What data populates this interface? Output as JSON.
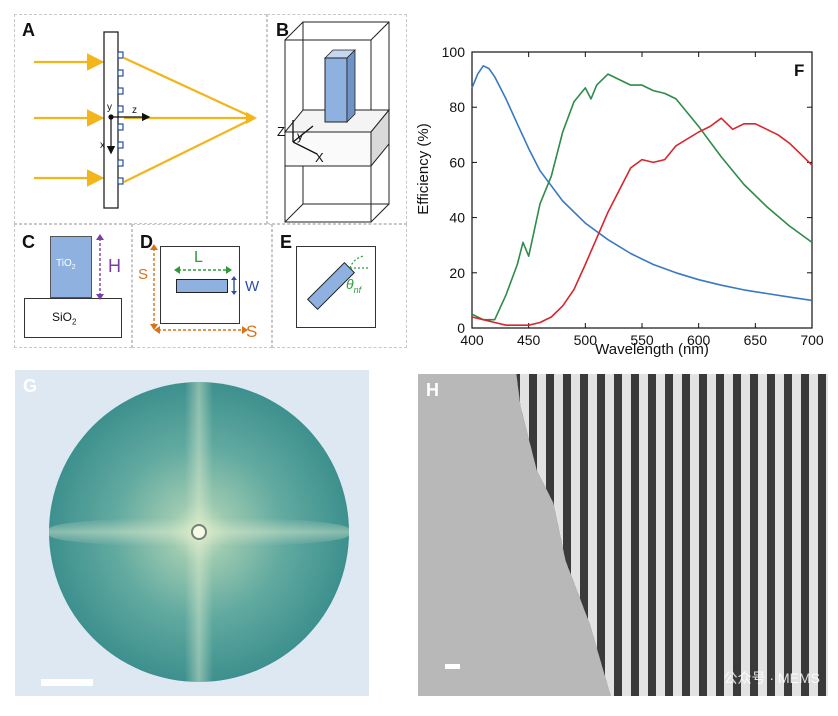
{
  "labels": {
    "a": "A",
    "b": "B",
    "c": "C",
    "d": "D",
    "e": "E",
    "f": "F",
    "g": "G",
    "h": "H"
  },
  "diagram_a": {
    "axis_y": "y",
    "axis_z": "z",
    "axis_x": "x"
  },
  "diagram_b": {
    "axis_z": "Z",
    "axis_y": "y",
    "axis_x": "X"
  },
  "diagram_c": {
    "pillar": "TiO",
    "pillar_sub": "2",
    "substrate": "SiO",
    "substrate_sub": "2",
    "height": "H"
  },
  "diagram_d": {
    "length": "L",
    "width": "W",
    "period_v": "S",
    "period_h": "S"
  },
  "diagram_e": {
    "angle": "θ",
    "angle_sub": "nf"
  },
  "watermark": "公众号 · MEMS",
  "colors": {
    "blue": "#3a78c2",
    "green": "#2e8b4a",
    "red": "#d8262c",
    "arrow": "#f2b51c",
    "pillar": "#8fb1df",
    "dim_h": "#7a3ea8",
    "dim_l": "#2f9a3a",
    "dim_s": "#d9731a"
  },
  "chart_data": {
    "type": "line",
    "title": "",
    "xlabel": "Wavelength (nm)",
    "ylabel": "Efficiency (%)",
    "xlim": [
      400,
      700
    ],
    "ylim": [
      0,
      100
    ],
    "xticks": [
      400,
      450,
      500,
      550,
      600,
      650,
      700
    ],
    "yticks": [
      0,
      20,
      40,
      60,
      80,
      100
    ],
    "grid": false,
    "series": [
      {
        "color": "blue",
        "x": [
          400,
          405,
          410,
          415,
          420,
          430,
          440,
          450,
          460,
          480,
          500,
          520,
          540,
          560,
          580,
          600,
          620,
          640,
          660,
          680,
          700
        ],
        "y": [
          87,
          92,
          95,
          94,
          91,
          83,
          74,
          65,
          57,
          46,
          38,
          32,
          27,
          23,
          20,
          17.5,
          15.5,
          13.8,
          12.5,
          11.2,
          10
        ]
      },
      {
        "color": "green",
        "x": [
          400,
          410,
          420,
          430,
          440,
          445,
          450,
          460,
          470,
          480,
          490,
          500,
          505,
          510,
          520,
          530,
          540,
          550,
          560,
          570,
          580,
          600,
          620,
          640,
          660,
          680,
          700
        ],
        "y": [
          5,
          3,
          3,
          12,
          23,
          31,
          26,
          45,
          55,
          71,
          82,
          87,
          83,
          88,
          92,
          90,
          88,
          88,
          86,
          85,
          83,
          73,
          62,
          52,
          44,
          37,
          31
        ]
      },
      {
        "color": "red",
        "x": [
          400,
          410,
          420,
          430,
          440,
          450,
          460,
          470,
          480,
          490,
          500,
          520,
          540,
          550,
          560,
          570,
          580,
          600,
          610,
          620,
          625,
          630,
          640,
          650,
          660,
          670,
          680,
          690,
          700
        ],
        "y": [
          4,
          3,
          2,
          1,
          1,
          1,
          2,
          4,
          8,
          14,
          23,
          42,
          58,
          61,
          60,
          61,
          66,
          71,
          73,
          76,
          74,
          72,
          74,
          74,
          72,
          70,
          67,
          63,
          59
        ]
      }
    ]
  }
}
